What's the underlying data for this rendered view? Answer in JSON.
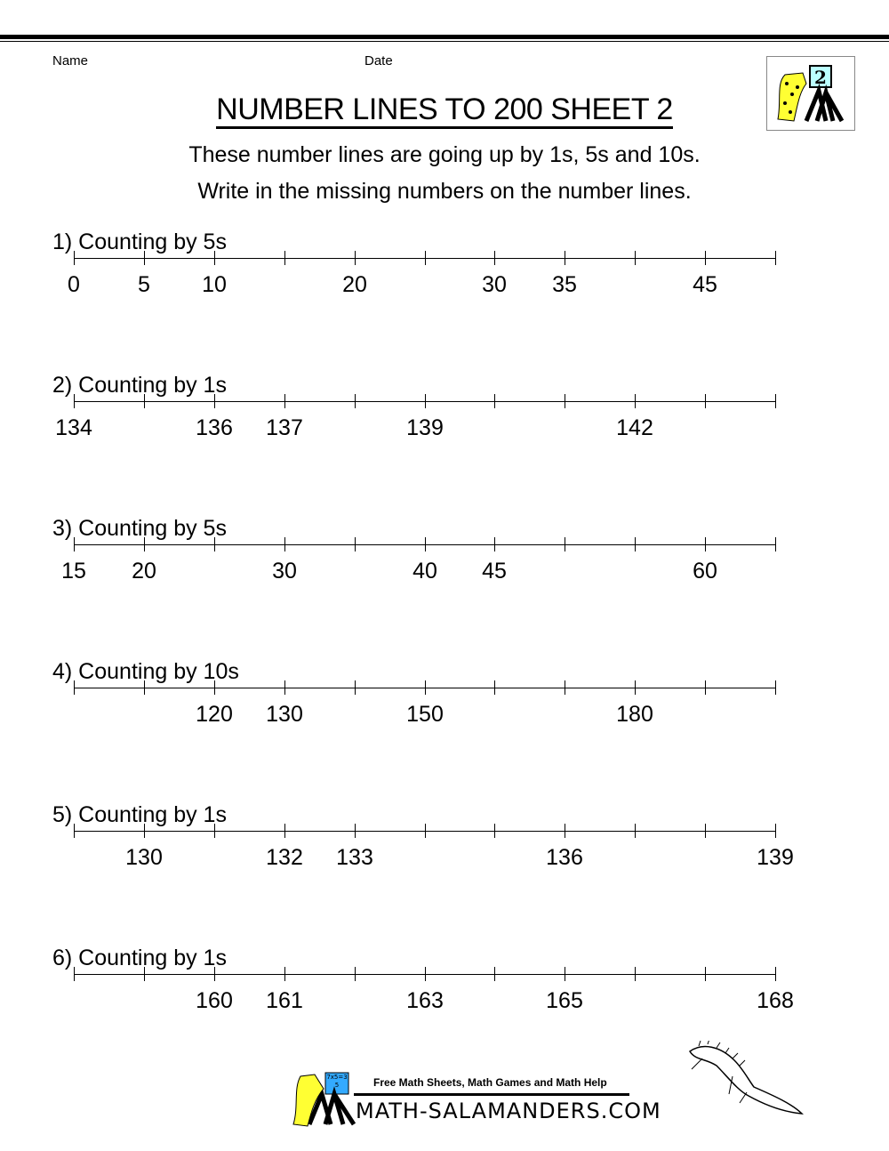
{
  "header": {
    "name_label": "Name",
    "date_label": "Date",
    "title": "NUMBER LINES TO 200 SHEET 2",
    "instruction_1": "These number lines are going up by 1s, 5s and 10s.",
    "instruction_2": "Write in the missing numbers on the number lines.",
    "logo_number": "2"
  },
  "problems": [
    {
      "title": "1) Counting by 5s",
      "labels": [
        "0",
        "5",
        "10",
        "",
        "20",
        "",
        "30",
        "35",
        "",
        "45",
        ""
      ]
    },
    {
      "title": "2) Counting by 1s",
      "labels": [
        "134",
        "",
        "136",
        "137",
        "",
        "139",
        "",
        "",
        "142",
        "",
        ""
      ]
    },
    {
      "title": "3) Counting by 5s",
      "labels": [
        "15",
        "20",
        "",
        "30",
        "",
        "40",
        "45",
        "",
        "",
        "60",
        ""
      ]
    },
    {
      "title": "4) Counting by 10s",
      "labels": [
        "",
        "",
        "120",
        "130",
        "",
        "150",
        "",
        "",
        "180",
        "",
        ""
      ]
    },
    {
      "title": "5) Counting by 1s",
      "labels": [
        "",
        "130",
        "",
        "132",
        "133",
        "",
        "",
        "136",
        "",
        "",
        "139"
      ]
    },
    {
      "title": "6) Counting by 1s",
      "labels": [
        "",
        "",
        "160",
        "161",
        "",
        "163",
        "",
        "165",
        "",
        "",
        "168"
      ]
    }
  ],
  "footer": {
    "tagline": "Free Math Sheets, Math Games and Math Help",
    "brand": "MATH-SALAMANDERS.COM",
    "board_text": "7x5=35"
  }
}
